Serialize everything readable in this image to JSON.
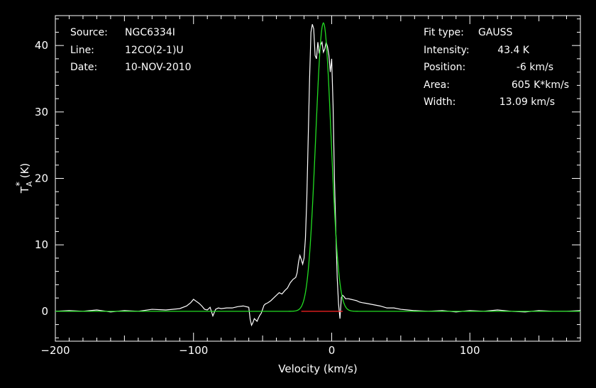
{
  "chart_data": {
    "type": "line",
    "xlabel": "Velocity (km/s)",
    "ylabel": "T_A^* (K)",
    "ylabel_parts": {
      "main": "T",
      "sub": "A",
      "sup": "*",
      "unit": "(K)"
    },
    "xlim": [
      -200,
      180
    ],
    "ylim": [
      -4.5,
      44.5
    ],
    "x_ticks": [
      -200,
      -100,
      0,
      100
    ],
    "x_tick_labels": [
      "−200",
      "−100",
      "0",
      "100"
    ],
    "y_ticks": [
      0,
      10,
      20,
      30,
      40
    ],
    "y_tick_labels": [
      "0",
      "10",
      "20",
      "30",
      "40"
    ],
    "series": [
      {
        "role": "observed spectrum",
        "color": "#ffffff",
        "x": [
          -200,
          -190,
          -180,
          -170,
          -160,
          -150,
          -140,
          -130,
          -120,
          -110,
          -105,
          -102,
          -100,
          -98,
          -96,
          -94,
          -92,
          -90,
          -88,
          -86,
          -84,
          -82,
          -80,
          -76,
          -72,
          -68,
          -64,
          -60,
          -59,
          -58,
          -57,
          -56,
          -55,
          -54,
          -53,
          -52,
          -51,
          -50,
          -49,
          -48,
          -47,
          -46,
          -44,
          -42,
          -40,
          -38,
          -36,
          -34,
          -32,
          -30,
          -28,
          -26,
          -25,
          -24,
          -23,
          -22,
          -21,
          -20,
          -19,
          -18,
          -17,
          -16,
          -15,
          -14,
          -13,
          -12,
          -11,
          -10,
          -9,
          -8,
          -7,
          -6,
          -5,
          -4,
          -3,
          -2,
          -1,
          0,
          1,
          2,
          3,
          4,
          5,
          6,
          7,
          8,
          9,
          10,
          12,
          14,
          16,
          18,
          20,
          22,
          25,
          30,
          35,
          40,
          45,
          50,
          55,
          60,
          70,
          80,
          90,
          100,
          110,
          120,
          130,
          140,
          150,
          160,
          170,
          180
        ],
        "y": [
          0.0,
          0.1,
          0.0,
          0.2,
          -0.1,
          0.1,
          0.0,
          0.3,
          0.2,
          0.4,
          0.8,
          1.3,
          1.8,
          1.5,
          1.2,
          0.8,
          0.3,
          0.2,
          0.6,
          -0.7,
          0.3,
          0.5,
          0.4,
          0.5,
          0.5,
          0.7,
          0.8,
          0.6,
          -1.2,
          -2.1,
          -1.7,
          -1.1,
          -1.3,
          -1.5,
          -1.0,
          -0.6,
          -0.3,
          0.3,
          0.9,
          1.1,
          1.2,
          1.3,
          1.6,
          2.0,
          2.4,
          2.8,
          2.6,
          3.1,
          3.5,
          4.3,
          4.8,
          5.1,
          5.8,
          7.4,
          8.4,
          7.8,
          7.1,
          8.0,
          11.0,
          17.0,
          26.0,
          35.0,
          42.0,
          43.2,
          42.5,
          38.5,
          38.0,
          40.5,
          38.8,
          40.1,
          40.5,
          39.0,
          39.5,
          40.5,
          39.8,
          38.5,
          36.0,
          38.0,
          31.0,
          20.0,
          12.0,
          5.0,
          1.0,
          -1.1,
          2.1,
          2.4,
          2.2,
          1.9,
          1.9,
          1.8,
          1.7,
          1.6,
          1.4,
          1.3,
          1.2,
          1.0,
          0.8,
          0.5,
          0.5,
          0.3,
          0.2,
          0.1,
          0.0,
          0.1,
          -0.1,
          0.1,
          0.0,
          0.2,
          0.0,
          -0.1,
          0.1,
          0.0,
          0.0,
          0.1
        ]
      },
      {
        "role": "gaussian fit",
        "color": "#22dd22",
        "model": {
          "amplitude": 43.4,
          "center": -6,
          "fwhm": 13.09
        }
      },
      {
        "role": "baseline",
        "color": "#ff2222",
        "x": [
          -22,
          8
        ],
        "y": [
          0,
          0
        ]
      }
    ]
  },
  "header_left": [
    {
      "label": "Source:",
      "value": "NGC6334I"
    },
    {
      "label": "Line:",
      "value": "12CO(2-1)U"
    },
    {
      "label": "Date:",
      "value": "10-NOV-2010"
    }
  ],
  "header_right": [
    {
      "label": "Fit type:",
      "value": "GAUSS"
    },
    {
      "label": "Intensity:",
      "value": "43.4 K"
    },
    {
      "label": "Position:",
      "value": "-6 km/s"
    },
    {
      "label": "Area:",
      "value": "605 K*km/s"
    },
    {
      "label": "Width:",
      "value": "13.09 km/s"
    }
  ]
}
